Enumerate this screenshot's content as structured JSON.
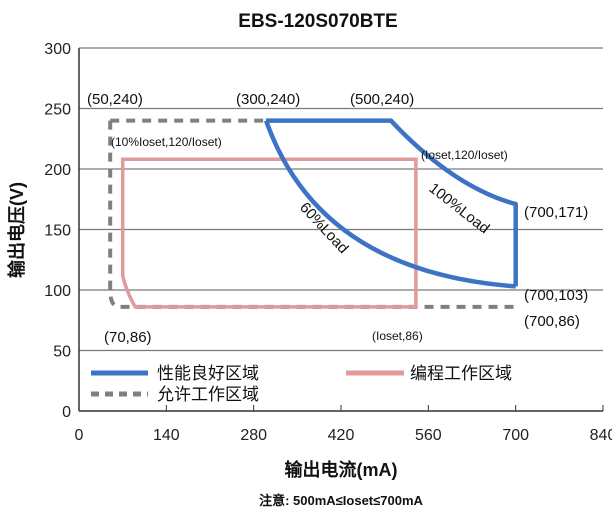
{
  "chart_data": {
    "type": "line",
    "title": "EBS-120S070BTE",
    "xlabel": "输出电流(mA)",
    "ylabel": "输出电压(V)",
    "xlim": [
      0,
      840
    ],
    "ylim": [
      0,
      300
    ],
    "xticks": [
      0,
      140,
      280,
      420,
      560,
      700,
      840
    ],
    "yticks": [
      0,
      50,
      100,
      150,
      200,
      250,
      300
    ],
    "grid": "horizontal",
    "note": "注意: 500mA≤Ioset≤700mA",
    "series": [
      {
        "name": "性能良好区域",
        "color": "#3d73c4",
        "style": "solid",
        "points": [
          [
            300,
            240
          ],
          [
            500,
            240
          ],
          [
            700,
            171
          ],
          [
            700,
            103
          ]
        ],
        "inner_curve": [
          [
            300,
            240
          ],
          [
            700,
            103
          ]
        ]
      },
      {
        "name": "编程工作区域",
        "color": "#e09a9a",
        "style": "solid",
        "points": [
          [
            70,
            208
          ],
          [
            70,
            112
          ],
          [
            75,
            100
          ],
          [
            90,
            86
          ],
          [
            540,
            86
          ],
          [
            540,
            208
          ],
          [
            70,
            208
          ]
        ]
      },
      {
        "name": "允许工作区域",
        "color": "#7f7f7f",
        "style": "dashed",
        "points": [
          [
            50,
            240
          ],
          [
            300,
            240
          ],
          [
            50,
            240
          ],
          [
            50,
            100
          ],
          [
            65,
            86
          ],
          [
            700,
            86
          ]
        ]
      }
    ],
    "annotations": [
      {
        "id": "a50_240",
        "text": "(50,240)",
        "x": 50,
        "y": 240
      },
      {
        "id": "a300_240",
        "text": "(300,240)",
        "x": 300,
        "y": 240
      },
      {
        "id": "a500_240",
        "text": "(500,240)",
        "x": 500,
        "y": 240
      },
      {
        "id": "a10pct",
        "text": "(10%Ioset,120/Ioset)",
        "x": 70,
        "y": 208
      },
      {
        "id": "aioset120",
        "text": "(Ioset,120/Ioset)",
        "x": 540,
        "y": 208
      },
      {
        "id": "a700_171",
        "text": "(700,171)",
        "x": 700,
        "y": 171
      },
      {
        "id": "a700_103",
        "text": "(700,103)",
        "x": 700,
        "y": 103
      },
      {
        "id": "a700_86",
        "text": "(700,86)",
        "x": 700,
        "y": 86
      },
      {
        "id": "a70_86",
        "text": "(70,86)",
        "x": 70,
        "y": 86
      },
      {
        "id": "aioset86",
        "text": "(Ioset,86)",
        "x": 540,
        "y": 86
      },
      {
        "id": "load100",
        "text": "100%Load"
      },
      {
        "id": "load60",
        "text": "60%Load"
      }
    ]
  }
}
